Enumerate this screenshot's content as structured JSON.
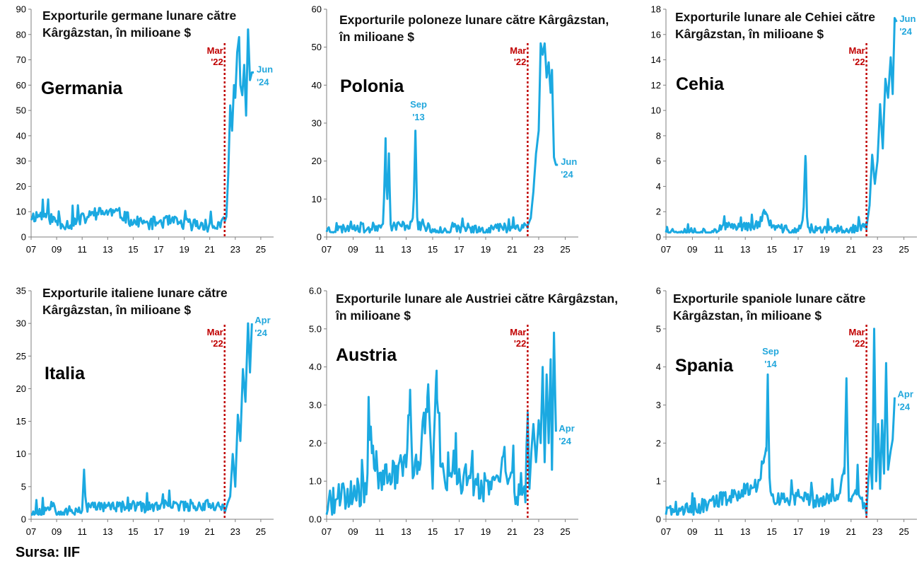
{
  "source": "Sursa: IIF",
  "colors": {
    "line": "#1BA9E1",
    "marker": "#C00000",
    "annotation": "#22A7DC",
    "axis": "#7f7f7f"
  },
  "x_tick_labels": [
    "07",
    "09",
    "11",
    "13",
    "15",
    "17",
    "19",
    "21",
    "23",
    "25"
  ],
  "marker_label": [
    "Mar",
    "'22"
  ],
  "chart_data": [
    {
      "type": "line",
      "title_lines": [
        "Exporturile germane lunare către",
        "Kârgâzstan, în milioane $"
      ],
      "country": "Germania",
      "ylim": [
        0,
        90
      ],
      "yticks": [
        0,
        10,
        20,
        30,
        40,
        50,
        60,
        70,
        80,
        90
      ],
      "ytick_labels": [
        "0",
        "10",
        "20",
        "30",
        "40",
        "50",
        "60",
        "70",
        "80",
        "90"
      ],
      "xlim": [
        2007,
        2026
      ],
      "event": "2022-03",
      "end_label": [
        "Jun",
        "'24"
      ],
      "base": 6,
      "noise": 2.5,
      "seed": 11,
      "x": [
        2007.0,
        2008.0,
        2009.0,
        2010.0,
        2011.0,
        2012.0,
        2013.0,
        2014.0,
        2015.0,
        2016.0,
        2017.0,
        2018.0,
        2019.0,
        2020.0,
        2021.0,
        2022.0,
        2022.17,
        2022.3,
        2022.45,
        2022.6,
        2022.75,
        2022.9,
        2023.0,
        2023.15,
        2023.3,
        2023.4,
        2023.55,
        2023.7,
        2023.85,
        2024.0,
        2024.15,
        2024.3,
        2024.45
      ],
      "y": [
        8,
        9,
        6,
        5,
        7,
        9,
        10,
        9,
        6,
        5,
        6,
        6,
        5,
        5,
        4,
        5,
        6,
        8,
        25,
        52,
        42,
        60,
        55,
        73,
        79,
        60,
        56,
        68,
        48,
        82,
        62,
        65,
        65
      ]
    },
    {
      "type": "line",
      "title_lines": [
        "Exporturile poloneze lunare către Kârgâzstan,",
        "în milioane $"
      ],
      "country": "Polonia",
      "ylim": [
        0,
        60
      ],
      "yticks": [
        0,
        10,
        20,
        30,
        40,
        50,
        60
      ],
      "ytick_labels": [
        "0",
        "10",
        "20",
        "30",
        "40",
        "50",
        "60"
      ],
      "xlim": [
        2007,
        2026
      ],
      "event": "2022-03",
      "end_label": [
        "Jun",
        "'24"
      ],
      "peak_label": [
        "Sep",
        "'13"
      ],
      "base": 2.5,
      "noise": 1.3,
      "seed": 23,
      "x": [
        2007.0,
        2008.0,
        2009.0,
        2010.0,
        2011.0,
        2011.3,
        2011.45,
        2011.55,
        2011.7,
        2011.8,
        2012.0,
        2013.0,
        2013.55,
        2013.7,
        2013.85,
        2014.0,
        2015.0,
        2016.0,
        2017.0,
        2018.0,
        2019.0,
        2020.0,
        2021.0,
        2022.0,
        2022.17,
        2022.4,
        2022.6,
        2022.8,
        2023.0,
        2023.15,
        2023.3,
        2023.45,
        2023.6,
        2023.75,
        2023.9,
        2024.0,
        2024.15,
        2024.3,
        2024.45
      ],
      "y": [
        2,
        2,
        3,
        2,
        3,
        5,
        26,
        4,
        22,
        3,
        3,
        3,
        4,
        28,
        3,
        3,
        2,
        2,
        1.5,
        2,
        2,
        2.5,
        2.5,
        3,
        3,
        5,
        12,
        22,
        28,
        51,
        48,
        51,
        42,
        46,
        38,
        44,
        21,
        19,
        19
      ]
    },
    {
      "type": "line",
      "title_lines": [
        "Exporturile lunare ale Cehiei către",
        "Kârgâzstan, în milioane $"
      ],
      "country": "Cehia",
      "ylim": [
        0,
        18
      ],
      "yticks": [
        0,
        2,
        4,
        6,
        8,
        10,
        12,
        14,
        16,
        18
      ],
      "ytick_labels": [
        "0",
        "2",
        "4",
        "6",
        "8",
        "10",
        "12",
        "14",
        "16",
        "18"
      ],
      "xlim": [
        2007,
        2026
      ],
      "event": "2022-03",
      "end_label": [
        "Jun",
        "'24"
      ],
      "base": 0.5,
      "noise": 0.35,
      "seed": 37,
      "x": [
        2007.0,
        2008.0,
        2009.0,
        2010.0,
        2011.0,
        2012.0,
        2013.0,
        2014.0,
        2014.5,
        2015.0,
        2016.0,
        2017.0,
        2017.4,
        2017.55,
        2017.7,
        2018.0,
        2019.0,
        2020.0,
        2021.0,
        2022.0,
        2022.17,
        2022.4,
        2022.6,
        2022.8,
        2023.0,
        2023.2,
        2023.4,
        2023.6,
        2023.8,
        2024.0,
        2024.15,
        2024.3,
        2024.45
      ],
      "y": [
        0.4,
        0.5,
        0.5,
        0.4,
        0.6,
        0.9,
        0.8,
        1.0,
        2.0,
        0.8,
        0.6,
        0.4,
        1.5,
        6.4,
        0.6,
        0.5,
        0.5,
        0.6,
        0.6,
        0.8,
        0.8,
        2.5,
        6.5,
        4.2,
        6.0,
        10.5,
        7.0,
        12.5,
        11.0,
        14.2,
        11.3,
        17.3,
        17.0
      ]
    },
    {
      "type": "line",
      "title_lines": [
        "Exporturile italiene lunare către",
        "Kârgâzstan, în milioane $"
      ],
      "country": "Italia",
      "ylim": [
        0,
        35
      ],
      "yticks": [
        0,
        5,
        10,
        15,
        20,
        25,
        30,
        35
      ],
      "ytick_labels": [
        "0",
        "5",
        "10",
        "15",
        "20",
        "25",
        "30",
        "35"
      ],
      "xlim": [
        2007,
        2026
      ],
      "event": "2022-03",
      "end_label": [
        "Apr",
        "'24"
      ],
      "base": 1.6,
      "noise": 0.8,
      "seed": 53,
      "x": [
        2007.0,
        2008.0,
        2008.8,
        2009.0,
        2010.0,
        2011.0,
        2011.15,
        2011.3,
        2012.0,
        2013.0,
        2014.0,
        2015.0,
        2016.0,
        2017.0,
        2018.0,
        2019.0,
        2020.0,
        2021.0,
        2022.0,
        2022.17,
        2022.4,
        2022.6,
        2022.8,
        2023.0,
        2023.2,
        2023.4,
        2023.6,
        2023.8,
        2024.0,
        2024.15,
        2024.3
      ],
      "y": [
        0.8,
        1.2,
        3.0,
        1.0,
        1.2,
        1.5,
        7.6,
        1.8,
        2.0,
        2.0,
        1.8,
        2.0,
        1.8,
        2.0,
        2.2,
        2.0,
        2.0,
        2.3,
        2.0,
        1.0,
        2.5,
        3.5,
        10.0,
        5.0,
        16.0,
        12.0,
        23.0,
        18.0,
        30.0,
        22.5,
        30.0
      ]
    },
    {
      "type": "line",
      "title_lines": [
        "Exporturile lunare ale Austriei către Kârgâzstan,",
        "în milioane $"
      ],
      "country": "Austria",
      "ylim": [
        0,
        6
      ],
      "yticks": [
        0,
        1,
        2,
        3,
        4,
        5,
        6
      ],
      "ytick_labels": [
        "0.0",
        "1.0",
        "2.0",
        "3.0",
        "4.0",
        "5.0",
        "6.0"
      ],
      "xlim": [
        2007,
        2026
      ],
      "event": "2022-03",
      "end_label": [
        "Apr",
        "'24"
      ],
      "base": 0.9,
      "noise": 0.45,
      "seed": 71,
      "x": [
        2007.0,
        2008.0,
        2009.0,
        2010.0,
        2010.2,
        2011.0,
        2012.0,
        2013.0,
        2013.3,
        2013.5,
        2014.0,
        2014.6,
        2015.0,
        2015.3,
        2015.6,
        2016.0,
        2017.0,
        2018.0,
        2019.0,
        2020.0,
        2020.3,
        2021.0,
        2022.0,
        2022.17,
        2022.3,
        2022.45,
        2022.6,
        2022.8,
        2023.0,
        2023.15,
        2023.3,
        2023.45,
        2023.6,
        2023.75,
        2023.9,
        2024.0,
        2024.15,
        2024.3
      ],
      "y": [
        0.3,
        0.5,
        0.6,
        0.8,
        2.2,
        1.0,
        1.2,
        1.5,
        3.4,
        1.2,
        1.4,
        3.2,
        1.0,
        3.9,
        1.2,
        1.0,
        1.1,
        1.0,
        0.9,
        0.8,
        1.7,
        0.8,
        0.8,
        2.8,
        0.8,
        1.8,
        2.5,
        1.5,
        2.6,
        2.0,
        4.0,
        1.5,
        3.8,
        2.0,
        4.2,
        1.3,
        4.9,
        2.3
      ]
    },
    {
      "type": "line",
      "title_lines": [
        "Exporturile spaniole lunare către",
        "Kârgâzstan, în milioane $"
      ],
      "country": "Spania",
      "ylim": [
        0,
        6
      ],
      "yticks": [
        0,
        1,
        2,
        3,
        4,
        5,
        6
      ],
      "ytick_labels": [
        "0",
        "1",
        "2",
        "3",
        "4",
        "5",
        "6"
      ],
      "xlim": [
        2007,
        2026
      ],
      "event": "2022-03",
      "end_label": [
        "Apr",
        "'24"
      ],
      "peak_label": [
        "Sep",
        "'14"
      ],
      "base": 0.35,
      "noise": 0.2,
      "seed": 89,
      "x": [
        2007.0,
        2008.0,
        2009.0,
        2010.0,
        2011.0,
        2012.0,
        2013.0,
        2014.0,
        2014.4,
        2014.6,
        2014.7,
        2014.85,
        2015.0,
        2016.0,
        2017.0,
        2018.0,
        2019.0,
        2020.0,
        2020.5,
        2020.65,
        2020.8,
        2021.0,
        2021.5,
        2022.0,
        2022.17,
        2022.3,
        2022.45,
        2022.6,
        2022.75,
        2022.9,
        2023.05,
        2023.2,
        2023.35,
        2023.5,
        2023.65,
        2023.8,
        2024.0,
        2024.15,
        2024.3
      ],
      "y": [
        0.2,
        0.3,
        0.2,
        0.4,
        0.5,
        0.6,
        0.8,
        0.9,
        1.5,
        1.8,
        3.8,
        0.9,
        0.6,
        0.5,
        0.6,
        0.5,
        0.5,
        0.6,
        1.2,
        3.7,
        0.6,
        0.5,
        0.9,
        0.4,
        0.2,
        1.0,
        1.6,
        0.8,
        5.0,
        1.0,
        2.5,
        0.8,
        2.6,
        1.2,
        4.1,
        1.3,
        1.8,
        2.1,
        3.2
      ]
    }
  ]
}
